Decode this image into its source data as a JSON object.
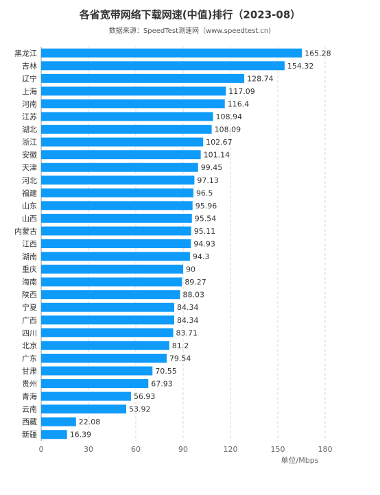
{
  "chart_data": {
    "type": "bar",
    "orientation": "horizontal",
    "title": "各省宽带网络下载网速(中值)排行（2023-08）",
    "subtitle": "数据来源：SpeedTest测速网（www.speedtest.cn)",
    "x_label": "单位/Mbps",
    "categories": [
      "黑龙江",
      "吉林",
      "辽宁",
      "上海",
      "河南",
      "江苏",
      "湖北",
      "浙江",
      "安徽",
      "天津",
      "河北",
      "福建",
      "山东",
      "山西",
      "内蒙古",
      "江西",
      "湖南",
      "重庆",
      "海南",
      "陕西",
      "宁夏",
      "广西",
      "四川",
      "北京",
      "广东",
      "甘肃",
      "贵州",
      "青海",
      "云南",
      "西藏",
      "新疆"
    ],
    "values": [
      165.28,
      154.32,
      128.74,
      117.09,
      116.4,
      108.94,
      108.09,
      102.67,
      101.14,
      99.45,
      97.13,
      96.5,
      95.96,
      95.54,
      95.11,
      94.93,
      94.3,
      90,
      89.27,
      88.03,
      84.34,
      84.34,
      83.71,
      81.2,
      79.54,
      70.55,
      67.93,
      56.93,
      53.92,
      22.08,
      16.39
    ],
    "color": "#0f9bfa",
    "xlim": [
      0,
      180
    ],
    "xticks": [
      0,
      30,
      60,
      90,
      120,
      150,
      180
    ],
    "grid": true
  }
}
